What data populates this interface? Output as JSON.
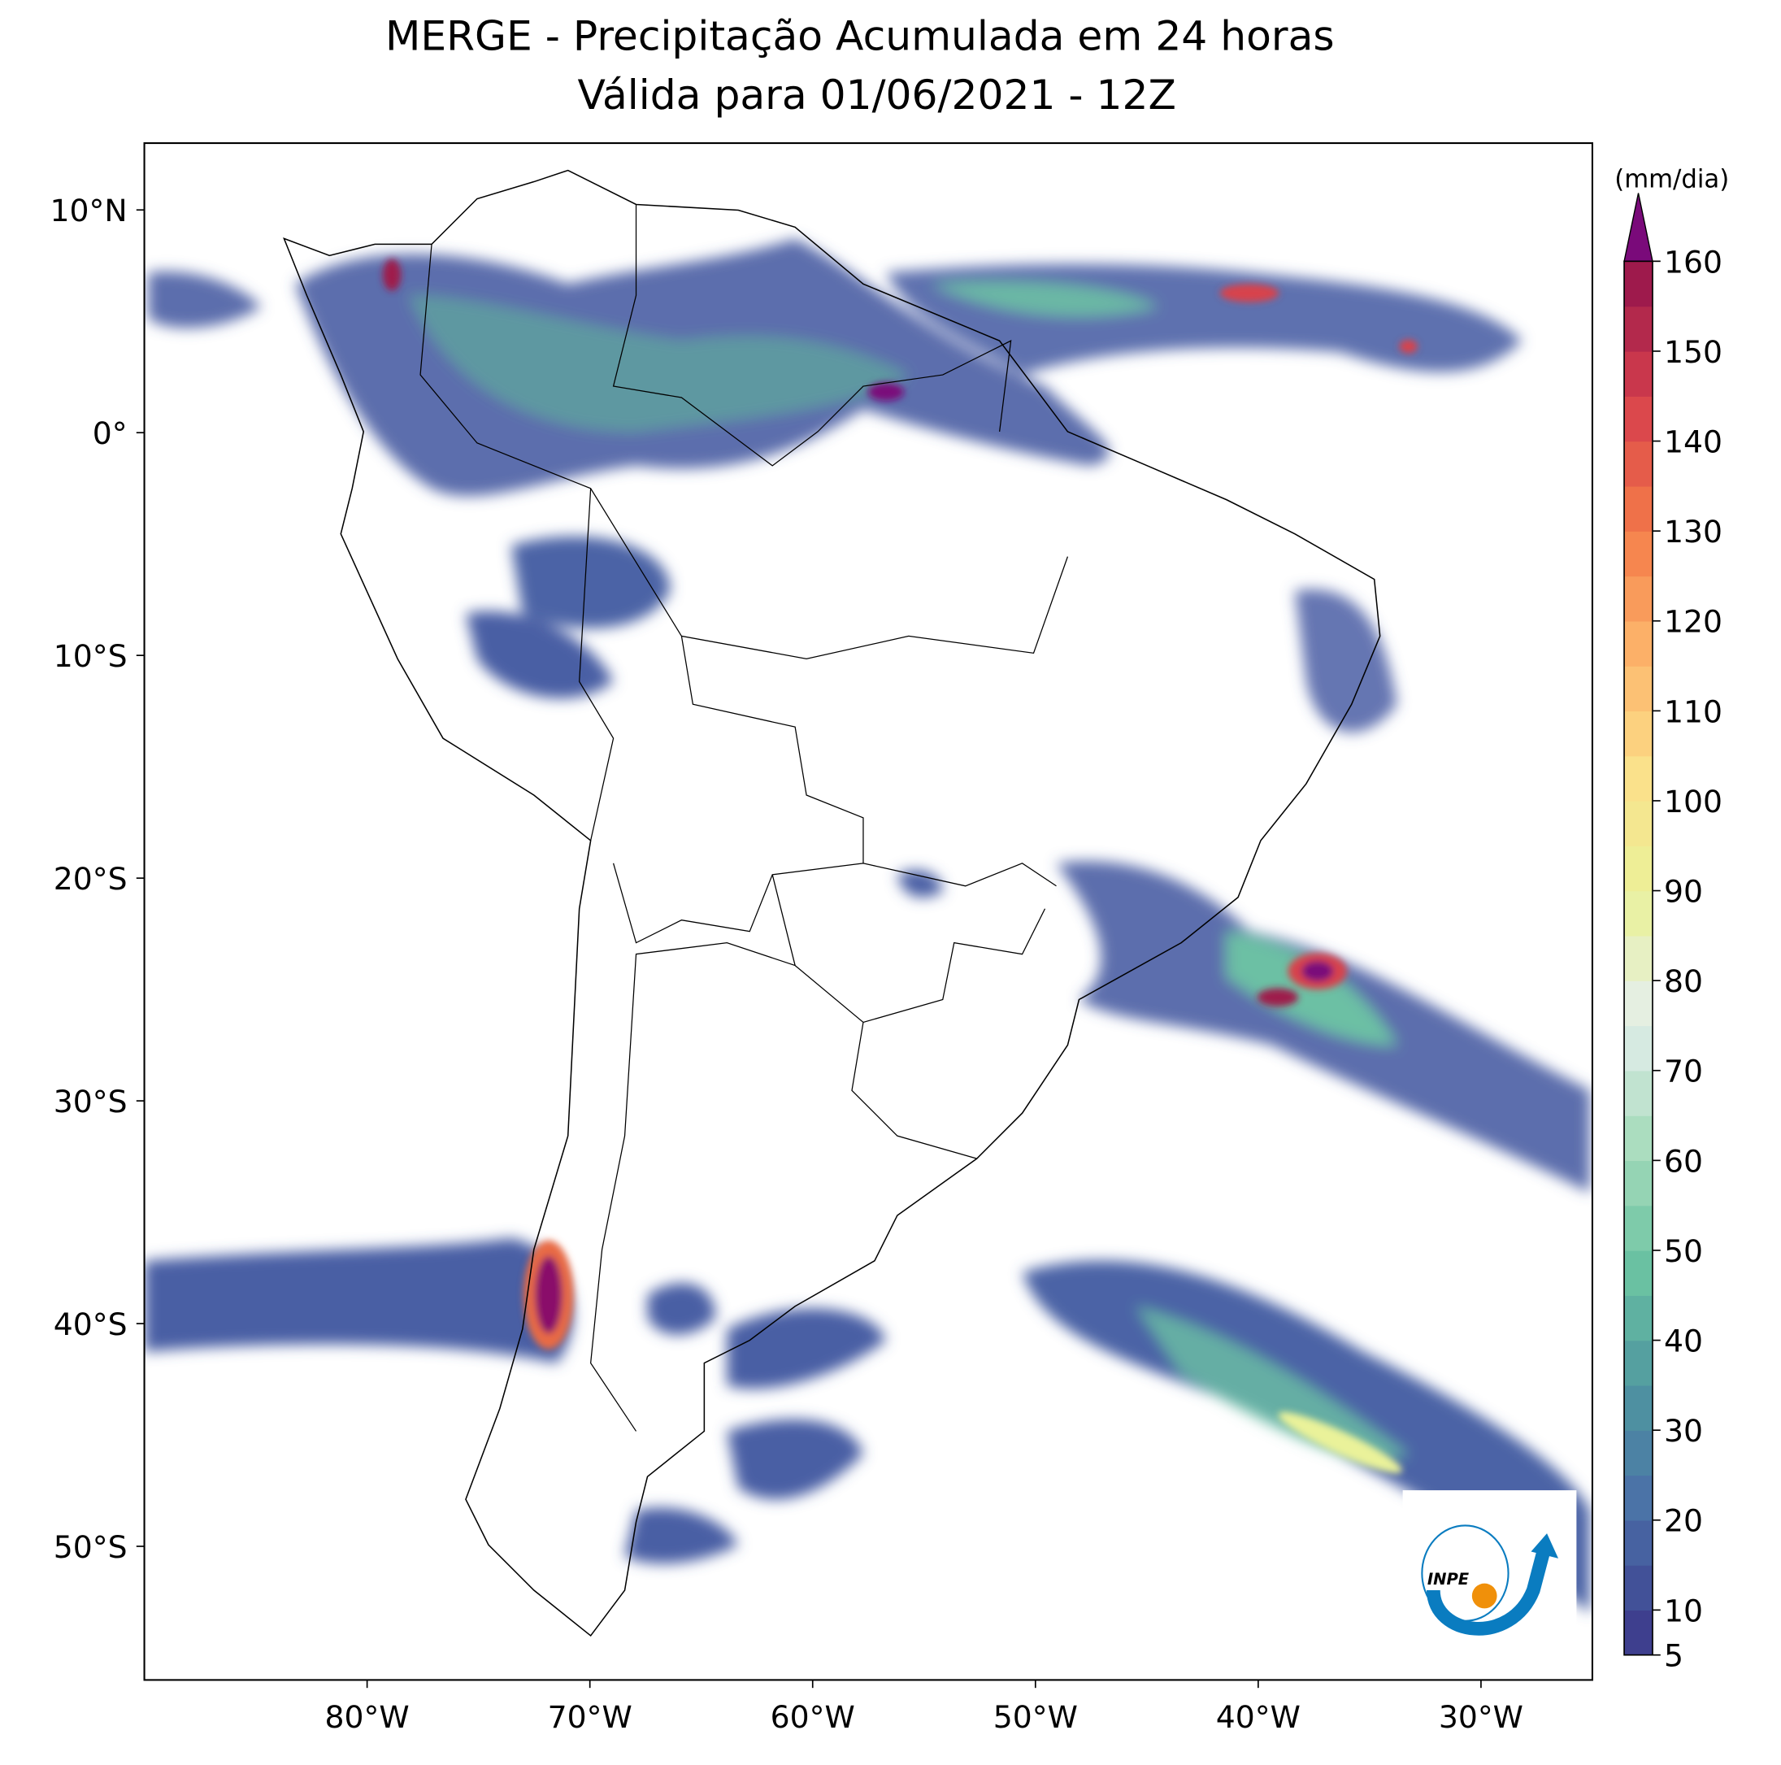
{
  "map": {
    "type": "precipitation-map",
    "title": "MERGE - Precipitação Acumulada em 24 horas",
    "subtitle": "Válida para 01/06/2021 - 12Z",
    "xlim": [
      -90,
      -25
    ],
    "ylim": [
      -56,
      13
    ],
    "xticks": [
      {
        "value": -80,
        "label": "80°W"
      },
      {
        "value": -70,
        "label": "70°W"
      },
      {
        "value": -60,
        "label": "60°W"
      },
      {
        "value": -50,
        "label": "50°W"
      },
      {
        "value": -40,
        "label": "40°W"
      },
      {
        "value": -30,
        "label": "30°W"
      }
    ],
    "yticks": [
      {
        "value": 10,
        "label": "10°N"
      },
      {
        "value": 0,
        "label": "0°"
      },
      {
        "value": -10,
        "label": "10°S"
      },
      {
        "value": -20,
        "label": "20°S"
      },
      {
        "value": -30,
        "label": "30°S"
      },
      {
        "value": -40,
        "label": "40°S"
      },
      {
        "value": -50,
        "label": "50°S"
      }
    ],
    "colorbar": {
      "label": "(mm/dia)",
      "levels": [
        5,
        10,
        15,
        20,
        25,
        30,
        35,
        40,
        45,
        50,
        55,
        60,
        65,
        70,
        75,
        80,
        85,
        90,
        95,
        100,
        105,
        110,
        115,
        120,
        125,
        130,
        135,
        140,
        145,
        150,
        155,
        160
      ],
      "ticks": [
        5,
        10,
        20,
        30,
        40,
        50,
        60,
        70,
        80,
        90,
        100,
        110,
        120,
        130,
        140,
        150,
        160
      ],
      "color_stops": [
        "#3e3f8e",
        "#4a6fa8",
        "#4f97a0",
        "#6cc4a2",
        "#a9dcbd",
        "#e4eeec",
        "#eaf29a",
        "#fbe08a",
        "#fdb46a",
        "#f47a48",
        "#d8424c",
        "#9e1a4c"
      ],
      "extend": "max",
      "extend_color": "#7a0a7a"
    },
    "logo": "INPE"
  }
}
